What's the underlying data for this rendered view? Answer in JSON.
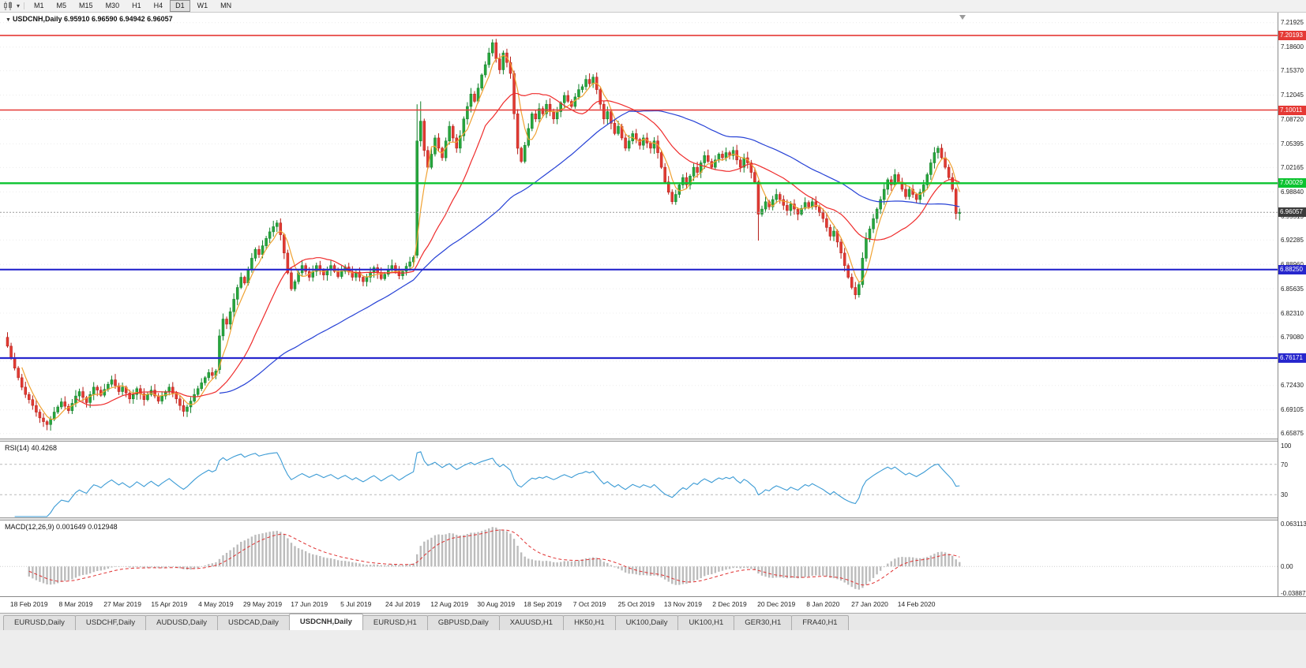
{
  "toolbar": {
    "timeframes": [
      "M1",
      "M5",
      "M15",
      "M30",
      "H1",
      "H4",
      "D1",
      "W1",
      "MN"
    ],
    "active": "D1"
  },
  "chart": {
    "symbol_label": "USDCNH,Daily",
    "open": "6.95910",
    "high": "6.96590",
    "low": "6.94942",
    "close": "6.96057"
  },
  "indicators": {
    "rsi": {
      "label": "RSI(14)",
      "value": "40.4268",
      "period": 14,
      "axis_labels": [
        "100",
        "70",
        "30"
      ],
      "level_lines": [
        70,
        30
      ],
      "line_color": "#3b9bd5"
    },
    "macd": {
      "label": "MACD(12,26,9)",
      "value_main": "0.001649",
      "value_signal": "0.012948",
      "fast": 12,
      "slow": 26,
      "signal": 9,
      "axis_labels": [
        "0.063113",
        "0.00",
        "-0.038872"
      ],
      "histogram_color": "#bcbcbc",
      "signal_color": "#e03030"
    }
  },
  "chart_data": {
    "type": "candlestick",
    "symbol": "USDCNH",
    "timeframe": "Daily",
    "last_bar": {
      "open": 6.9591,
      "high": 6.9659,
      "low": 6.94942,
      "close": 6.96057
    },
    "price_axis_ticks": [
      "7.21925",
      "7.18600",
      "7.15370",
      "7.12045",
      "7.08720",
      "7.05395",
      "7.02165",
      "6.98840",
      "6.95515",
      "6.92285",
      "6.88960",
      "6.85635",
      "6.82310",
      "6.79080",
      "6.75755",
      "6.72430",
      "6.69105",
      "6.65875"
    ],
    "price_range": {
      "top": 7.233,
      "bottom": 6.652
    },
    "levels": [
      {
        "value": 7.20193,
        "label": "7.20193",
        "color": "#e53935",
        "width": 1.6,
        "role": "resistance"
      },
      {
        "value": 7.10011,
        "label": "7.10011",
        "color": "#e53935",
        "width": 1.6,
        "role": "resistance"
      },
      {
        "value": 7.00029,
        "label": "7.00029",
        "color": "#0cc32f",
        "width": 2.4,
        "role": "pivot"
      },
      {
        "value": 6.8825,
        "label": "6.88250",
        "color": "#2727cd",
        "width": 2.2,
        "role": "support"
      },
      {
        "value": 6.76171,
        "label": "6.76171",
        "color": "#2727cd",
        "width": 2.2,
        "role": "support"
      }
    ],
    "current_price": {
      "value": "6.96057",
      "color": "#3c3c3c"
    },
    "moving_averages": [
      {
        "period": 5,
        "color": "#f0a232"
      },
      {
        "period": 20,
        "color": "#ef2b2b"
      },
      {
        "period": 60,
        "color": "#2742d6"
      }
    ],
    "candle_colors": {
      "up": "#27a63c",
      "up_stroke": "#12802a",
      "down": "#e23b33",
      "down_stroke": "#b51d17"
    },
    "wick": {
      "base": 0.0022,
      "upper_var": 0.0065,
      "lower_var": 0.0065
    },
    "closes": [
      6.778,
      6.762,
      6.748,
      6.735,
      6.722,
      6.712,
      6.705,
      6.697,
      6.688,
      6.68,
      6.675,
      6.671,
      6.678,
      6.688,
      6.695,
      6.702,
      6.696,
      6.69,
      6.7,
      6.71,
      6.716,
      6.708,
      6.701,
      6.712,
      6.722,
      6.718,
      6.711,
      6.719,
      6.726,
      6.732,
      6.724,
      6.716,
      6.722,
      6.714,
      6.706,
      6.712,
      6.72,
      6.713,
      6.705,
      6.712,
      6.718,
      6.71,
      6.703,
      6.71,
      6.716,
      6.722,
      6.714,
      6.706,
      6.697,
      6.689,
      6.695,
      6.703,
      6.712,
      6.72,
      6.728,
      6.735,
      6.742,
      6.738,
      6.744,
      6.792,
      6.815,
      6.808,
      6.825,
      6.842,
      6.858,
      6.872,
      6.864,
      6.882,
      6.898,
      6.91,
      6.903,
      6.915,
      6.925,
      6.934,
      6.941,
      6.946,
      6.93,
      6.905,
      6.878,
      6.856,
      6.866,
      6.878,
      6.888,
      6.88,
      6.872,
      6.88,
      6.888,
      6.882,
      6.875,
      6.882,
      6.888,
      6.88,
      6.873,
      6.88,
      6.886,
      6.879,
      6.872,
      6.879,
      6.872,
      6.866,
      6.872,
      6.879,
      6.885,
      6.878,
      6.87,
      6.876,
      6.883,
      6.888,
      6.881,
      6.874,
      6.88,
      6.887,
      6.893,
      6.899,
      7.058,
      7.085,
      7.045,
      7.022,
      7.04,
      7.062,
      7.048,
      7.035,
      7.058,
      7.078,
      7.062,
      7.048,
      7.065,
      7.088,
      7.105,
      7.122,
      7.112,
      7.13,
      7.148,
      7.162,
      7.178,
      7.192,
      7.17,
      7.155,
      7.178,
      7.165,
      7.15,
      7.095,
      7.048,
      7.03,
      7.052,
      7.075,
      7.095,
      7.088,
      7.102,
      7.095,
      7.108,
      7.098,
      7.088,
      7.098,
      7.11,
      7.12,
      7.112,
      7.105,
      7.118,
      7.128,
      7.132,
      7.142,
      7.136,
      7.145,
      7.128,
      7.108,
      7.088,
      7.098,
      7.082,
      7.068,
      7.078,
      7.062,
      7.048,
      7.058,
      7.068,
      7.06,
      7.052,
      7.062,
      7.055,
      7.048,
      7.058,
      7.042,
      7.022,
      7.002,
      6.988,
      6.975,
      6.985,
      6.998,
      7.008,
      6.998,
      7.01,
      7.022,
      7.015,
      7.028,
      7.038,
      7.03,
      7.022,
      7.032,
      7.04,
      7.035,
      7.042,
      7.038,
      7.045,
      7.032,
      7.022,
      7.035,
      7.028,
      7.015,
      7.002,
      6.958,
      6.965,
      6.975,
      6.968,
      6.978,
      6.985,
      6.978,
      6.97,
      6.963,
      6.972,
      6.965,
      6.958,
      6.966,
      6.974,
      6.968,
      6.975,
      6.968,
      6.96,
      6.952,
      6.94,
      6.928,
      6.935,
      6.92,
      6.905,
      6.888,
      6.872,
      6.858,
      6.848,
      6.862,
      6.898,
      6.925,
      6.938,
      6.952,
      6.965,
      6.978,
      6.992,
      7.005,
      6.998,
      7.012,
      7.002,
      6.992,
      6.982,
      6.992,
      6.985,
      6.978,
      6.988,
      6.998,
      7.012,
      7.028,
      7.042,
      7.048,
      7.035,
      7.022,
      7.008,
      6.992,
      6.959,
      6.96057
    ],
    "special_bars": [
      {
        "i": 0,
        "o": 6.79,
        "h": 6.797
      },
      {
        "i": 59,
        "o": 6.746,
        "h": 6.801
      },
      {
        "i": 114,
        "o": 6.902,
        "h": 7.108,
        "l": 6.898
      },
      {
        "i": 115,
        "h": 7.112
      },
      {
        "i": 135,
        "h": 7.1965
      },
      {
        "i": 209,
        "l": 6.922
      },
      {
        "i": 236,
        "l": 6.842
      },
      {
        "i": 238,
        "h": 6.906
      },
      {
        "i": 264,
        "l": 6.951
      },
      {
        "i": 265,
        "o": 6.9591,
        "h": 6.9659,
        "l": 6.94942
      }
    ],
    "date_labels": [
      {
        "label": "18 Feb 2019",
        "index": 6
      },
      {
        "label": "8 Mar 2019",
        "index": 19
      },
      {
        "label": "27 Mar 2019",
        "index": 32
      },
      {
        "label": "15 Apr 2019",
        "index": 45
      },
      {
        "label": "4 May 2019",
        "index": 58
      },
      {
        "label": "29 May 2019",
        "index": 71
      },
      {
        "label": "17 Jun 2019",
        "index": 84
      },
      {
        "label": "5 Jul 2019",
        "index": 97
      },
      {
        "label": "24 Jul 2019",
        "index": 110
      },
      {
        "label": "12 Aug 2019",
        "index": 123
      },
      {
        "label": "30 Aug 2019",
        "index": 136
      },
      {
        "label": "18 Sep 2019",
        "index": 149
      },
      {
        "label": "7 Oct 2019",
        "index": 162
      },
      {
        "label": "25 Oct 2019",
        "index": 175
      },
      {
        "label": "13 Nov 2019",
        "index": 188
      },
      {
        "label": "2 Dec 2019",
        "index": 201
      },
      {
        "label": "20 Dec 2019",
        "index": 214
      },
      {
        "label": "8 Jan 2020",
        "index": 227
      },
      {
        "label": "27 Jan 2020",
        "index": 240
      },
      {
        "label": "14 Feb 2020",
        "index": 253
      }
    ]
  },
  "tabs": {
    "items": [
      {
        "label": "EURUSD,Daily",
        "active": false
      },
      {
        "label": "USDCHF,Daily",
        "active": false
      },
      {
        "label": "AUDUSD,Daily",
        "active": false
      },
      {
        "label": "USDCAD,Daily",
        "active": false
      },
      {
        "label": "USDCNH,Daily",
        "active": true
      },
      {
        "label": "EURUSD,H1",
        "active": false
      },
      {
        "label": "GBPUSD,Daily",
        "active": false
      },
      {
        "label": "XAUUSD,H1",
        "active": false
      },
      {
        "label": "HK50,H1",
        "active": false
      },
      {
        "label": "UK100,Daily",
        "active": false
      },
      {
        "label": "UK100,H1",
        "active": false
      },
      {
        "label": "GER30,H1",
        "active": false
      },
      {
        "label": "FRA40,H1",
        "active": false
      }
    ]
  }
}
